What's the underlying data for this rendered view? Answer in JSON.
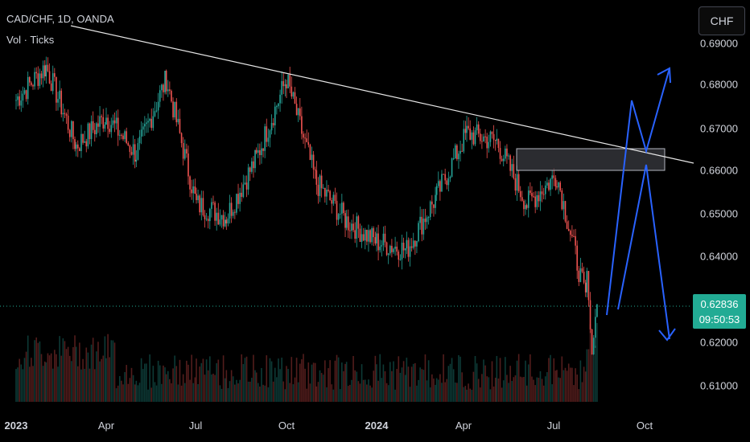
{
  "header": {
    "symbol_title": "CAD/CHF, 1D, OANDA",
    "volume_label": "Vol · Ticks",
    "currency_button": "CHF"
  },
  "price_axis": {
    "ticks": [
      "0.69000",
      "0.68000",
      "0.67000",
      "0.66000",
      "0.65000",
      "0.64000",
      "0.62000",
      "0.61000"
    ]
  },
  "current_price": {
    "value": "0.62836",
    "countdown": "09:50:53"
  },
  "time_axis": {
    "labels": [
      {
        "text": "2023",
        "bold": true
      },
      {
        "text": "Apr",
        "bold": false
      },
      {
        "text": "Jul",
        "bold": false
      },
      {
        "text": "Oct",
        "bold": false
      },
      {
        "text": "2024",
        "bold": true
      },
      {
        "text": "Apr",
        "bold": false
      },
      {
        "text": "Jul",
        "bold": false
      },
      {
        "text": "Oct",
        "bold": false
      }
    ]
  },
  "colors": {
    "background": "#000000",
    "bull": "#26a69a",
    "bear": "#ef5350",
    "trendline": "#e6e6e6",
    "projection": "#2962ff",
    "zone": "#3a3b40",
    "badge": "#22ab94"
  },
  "chart_data": {
    "type": "candlestick",
    "symbol": "CAD/CHF",
    "interval": "1D",
    "ylim": [
      0.606,
      0.692
    ],
    "close_path": [
      {
        "x": "2023-01",
        "y": 0.677
      },
      {
        "x": "2023-02",
        "y": 0.685
      },
      {
        "x": "2023-03",
        "y": 0.666
      },
      {
        "x": "2023-04",
        "y": 0.673
      },
      {
        "x": "2023-05",
        "y": 0.664
      },
      {
        "x": "2023-06",
        "y": 0.682
      },
      {
        "x": "2023-07",
        "y": 0.652
      },
      {
        "x": "2023-08",
        "y": 0.649
      },
      {
        "x": "2023-09",
        "y": 0.663
      },
      {
        "x": "2023-10",
        "y": 0.682
      },
      {
        "x": "2023-11",
        "y": 0.657
      },
      {
        "x": "2023-12",
        "y": 0.648
      },
      {
        "x": "2024-01",
        "y": 0.643
      },
      {
        "x": "2024-02",
        "y": 0.641
      },
      {
        "x": "2024-03",
        "y": 0.654
      },
      {
        "x": "2024-04",
        "y": 0.669
      },
      {
        "x": "2024-05",
        "y": 0.667
      },
      {
        "x": "2024-06",
        "y": 0.652
      },
      {
        "x": "2024-07",
        "y": 0.659
      },
      {
        "x": "2024-08",
        "y": 0.628
      }
    ],
    "trendline": {
      "from": {
        "x": "2023-01",
        "y": 0.687
      },
      "to": {
        "x": "2024-10",
        "y": 0.661
      }
    },
    "resistance_zone": {
      "from_x": "2024-06",
      "to_x": "2024-09",
      "y_low": 0.66,
      "y_high": 0.665
    },
    "last_price": 0.62836
  }
}
